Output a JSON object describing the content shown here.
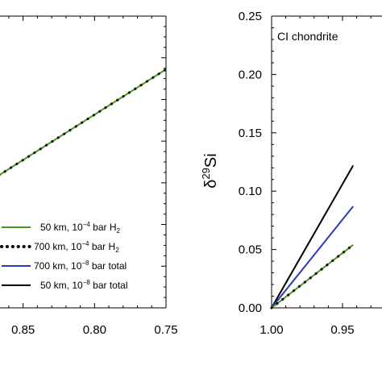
{
  "chart_data": [
    {
      "type": "line",
      "panel": "left",
      "x_ticks": [
        "0.85",
        "0.80",
        "0.75"
      ],
      "xlim": [
        0.9,
        0.75
      ],
      "series": [
        {
          "name": "50 km, 10⁻⁴ bar H₂",
          "color": "#4a9a1a",
          "style": "solid",
          "x": [
            0.9,
            0.75
          ],
          "y": [
            0.43,
            1.0
          ]
        },
        {
          "name": "700 km, 10⁻⁴ bar H₂",
          "color": "#111111",
          "style": "dotted",
          "x": [
            0.9,
            0.75
          ],
          "y": [
            0.43,
            1.0
          ]
        },
        {
          "name": "700 km, 10⁻⁸ bar total",
          "color": "#2b3bbf",
          "style": "solid",
          "x": [],
          "y": []
        },
        {
          "name": "50 km, 10⁻⁸ bar total",
          "color": "#000000",
          "style": "solid",
          "x": [],
          "y": []
        }
      ]
    },
    {
      "type": "line",
      "panel": "right",
      "annotation": "CI chondrite",
      "ylabel_base": "δ",
      "ylabel_sup": "29",
      "ylabel_tail": "Si",
      "x_ticks": [
        "1.00",
        "0.95"
      ],
      "y_ticks": [
        "0.00",
        "0.05",
        "0.10",
        "0.15",
        "0.20",
        "0.25"
      ],
      "xlim": [
        1.0,
        0.94
      ],
      "ylim": [
        0.0,
        0.25
      ],
      "series": [
        {
          "name": "50 km, 10⁻⁸ bar total",
          "color": "#000000",
          "x": [
            1.0,
            0.9425
          ],
          "y": [
            0.0,
            0.122
          ]
        },
        {
          "name": "700 km, 10⁻⁸ bar total",
          "color": "#2b3bbf",
          "x": [
            1.0,
            0.9425
          ],
          "y": [
            0.0,
            0.087
          ]
        },
        {
          "name": "50 km, 10⁻⁴ bar H₂",
          "color": "#4a9a1a",
          "x": [
            1.0,
            0.9425
          ],
          "y": [
            0.0,
            0.054
          ]
        },
        {
          "name": "700 km, 10⁻⁴ bar H₂",
          "color": "#111111",
          "style": "dotted",
          "x": [
            1.0,
            0.9425
          ],
          "y": [
            0.0,
            0.054
          ]
        }
      ]
    }
  ],
  "legend": [
    {
      "km": "50 km, 10",
      "exp": "−4",
      "rest": " bar H",
      "sub": "2",
      "color": "#4a9a1a",
      "style": "solid"
    },
    {
      "km": "700 km, 10",
      "exp": "−4",
      "rest": " bar H",
      "sub": "2",
      "color": "#111111",
      "style": "dotted"
    },
    {
      "km": "700 km, 10",
      "exp": "−8",
      "rest": " bar total",
      "sub": "",
      "color": "#2b3bbf",
      "style": "solid"
    },
    {
      "km": "50 km, 10",
      "exp": "−8",
      "rest": " bar total",
      "sub": "",
      "color": "#000000",
      "style": "solid"
    }
  ]
}
